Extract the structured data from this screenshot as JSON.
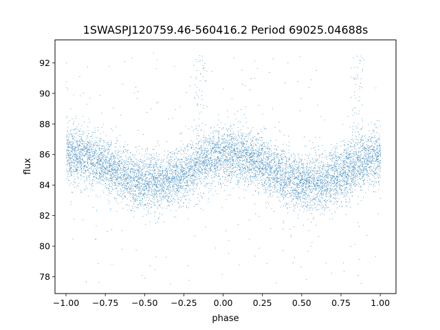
{
  "chart_data": {
    "type": "scatter",
    "title": "1SWASPJ120759.46-560416.2 Period 69025.04688s",
    "xlabel": "phase",
    "ylabel": "flux",
    "xlim": [
      -1.07,
      1.1
    ],
    "ylim": [
      76.9,
      93.5
    ],
    "xticks": [
      -1.0,
      -0.75,
      -0.5,
      -0.25,
      0.0,
      0.25,
      0.5,
      0.75,
      1.0
    ],
    "xtick_labels": [
      "−1.00",
      "−0.75",
      "−0.50",
      "−0.25",
      "0.00",
      "0.25",
      "0.50",
      "0.75",
      "1.00"
    ],
    "yticks": [
      78,
      80,
      82,
      84,
      86,
      88,
      90,
      92
    ],
    "ytick_labels": [
      "78",
      "80",
      "82",
      "84",
      "86",
      "88",
      "90",
      "92"
    ],
    "grid": false,
    "marker_color": "#1f77b4",
    "series_model": {
      "description_points": "phase-folded light curve, dense dots",
      "x_range": [
        -1.0,
        1.0
      ],
      "mean_flux": 85.0,
      "max_flux_at_phase": [
        -0.85,
        0.15,
        -0.15,
        0.85
      ],
      "min_flux_at_phase": [
        -0.45,
        0.55
      ],
      "flux_max": 86.0,
      "flux_min": 84.0,
      "scatter_sigma": 0.9,
      "outlier_range": [
        77.5,
        92.8
      ],
      "flare_phase": [
        -0.15,
        0.85
      ],
      "flare_top": 92.5
    }
  }
}
